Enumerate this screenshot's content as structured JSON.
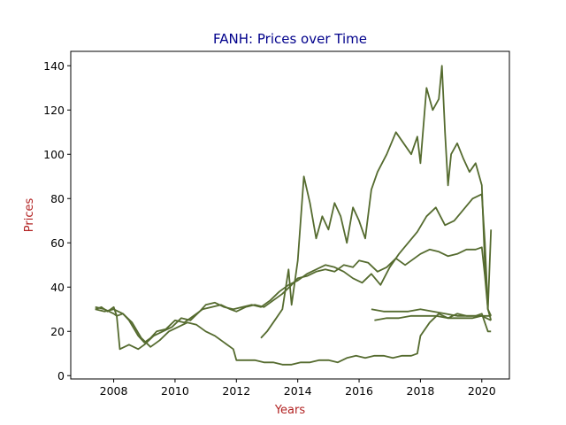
{
  "chart_data": {
    "type": "line",
    "title": "FANH: Prices over Time",
    "xlabel": "Years",
    "ylabel": "Prices",
    "xlim": [
      2006.6,
      2020.9
    ],
    "ylim": [
      -1.5,
      146.5
    ],
    "x_ticks": [
      "2008",
      "2010",
      "2012",
      "2014",
      "2016",
      "2018",
      "2020"
    ],
    "y_ticks": [
      "0",
      "20",
      "40",
      "60",
      "80",
      "100",
      "120",
      "140"
    ],
    "grid": false,
    "legend": "none",
    "colors": {
      "line": "#556b2f",
      "title": "#00008b",
      "axis_label": "#b22222",
      "axes": "#000000"
    },
    "series": [
      {
        "x": [
          2007.4,
          2007.6,
          2007.8,
          2008.0,
          2008.1,
          2008.3,
          2008.5,
          2008.8,
          2009.0,
          2009.2,
          2009.4,
          2009.7,
          2010.0,
          2010.3,
          2010.6,
          2010.9,
          2011.2,
          2011.5,
          2011.8,
          2012.0,
          2012.3,
          2012.6,
          2012.9,
          2013.2,
          2013.5,
          2013.8,
          2014.0,
          2014.3,
          2014.6,
          2014.9,
          2015.2,
          2015.5,
          2015.8,
          2016.0,
          2016.3,
          2016.6,
          2016.9,
          2017.2,
          2017.5,
          2017.8,
          2018.0,
          2018.3,
          2018.6,
          2018.9,
          2019.2,
          2019.5,
          2019.8,
          2020.0,
          2020.1,
          2020.2,
          2020.3
        ],
        "y": [
          30,
          31,
          29,
          31,
          27,
          28,
          25,
          18,
          15,
          17,
          20,
          21,
          25,
          24,
          27,
          30,
          31,
          32,
          30,
          29,
          31,
          32,
          31,
          34,
          37,
          41,
          44,
          45,
          47,
          48,
          47,
          50,
          49,
          52,
          51,
          47,
          49,
          53,
          50,
          53,
          55,
          57,
          56,
          54,
          55,
          57,
          57,
          58,
          45,
          30,
          27
        ]
      },
      {
        "x": [
          2007.4,
          2007.7,
          2008.0,
          2008.1,
          2008.2,
          2008.5,
          2008.8,
          2009.0,
          2009.3,
          2009.6,
          2009.9,
          2010.2,
          2010.5,
          2010.8,
          2011.0,
          2011.3,
          2011.6,
          2011.9,
          2012.2,
          2012.5,
          2012.8,
          2013.1,
          2013.4,
          2013.7,
          2014.0,
          2014.3,
          2014.6,
          2014.9,
          2015.2,
          2015.5,
          2015.8,
          2016.1,
          2016.4,
          2016.7,
          2017.0,
          2017.3,
          2017.6,
          2017.9,
          2018.2,
          2018.5,
          2018.8,
          2019.1,
          2019.4,
          2019.7,
          2020.0,
          2020.1,
          2020.2,
          2020.3
        ],
        "y": [
          31,
          30,
          28,
          27,
          12,
          14,
          12,
          14,
          18,
          20,
          22,
          26,
          25,
          29,
          32,
          33,
          31,
          30,
          31,
          32,
          31,
          34,
          38,
          41,
          43,
          46,
          48,
          50,
          49,
          47,
          44,
          42,
          46,
          41,
          49,
          55,
          60,
          65,
          72,
          76,
          68,
          70,
          75,
          80,
          82,
          60,
          30,
          25
        ]
      },
      {
        "x": [
          2007.4,
          2007.7,
          2008.0,
          2008.3,
          2008.6,
          2008.9,
          2009.2,
          2009.5,
          2009.8,
          2010.1,
          2010.4,
          2010.7,
          2011.0,
          2011.3,
          2011.6,
          2011.9,
          2012.0,
          2012.3,
          2012.6,
          2012.9,
          2013.2,
          2013.5,
          2013.8,
          2014.1,
          2014.4,
          2014.7,
          2015.0,
          2015.3,
          2015.6,
          2015.9,
          2016.2,
          2016.5,
          2016.8,
          2017.1,
          2017.4,
          2017.7,
          2017.9,
          2018.0,
          2018.3,
          2018.6,
          2018.9,
          2019.2,
          2019.5,
          2019.8,
          2020.0,
          2020.2,
          2020.3
        ],
        "y": [
          30,
          29,
          30,
          28,
          24,
          17,
          13,
          16,
          20,
          22,
          24,
          23,
          20,
          18,
          15,
          12,
          7,
          7,
          7,
          6,
          6,
          5,
          5,
          6,
          6,
          7,
          7,
          6,
          8,
          9,
          8,
          9,
          9,
          8,
          9,
          9,
          10,
          18,
          24,
          28,
          26,
          28,
          27,
          27,
          28,
          20,
          20
        ]
      },
      {
        "x": [
          2012.8,
          2013.0,
          2013.3,
          2013.5,
          2013.7,
          2013.8,
          2014.0,
          2014.2,
          2014.4,
          2014.6,
          2014.8,
          2015.0,
          2015.2,
          2015.4,
          2015.6,
          2015.8,
          2016.0,
          2016.2,
          2016.4,
          2016.6,
          2016.9,
          2017.2,
          2017.5,
          2017.7,
          2017.9,
          2018.0,
          2018.2,
          2018.4,
          2018.6,
          2018.7,
          2018.8,
          2018.9,
          2019.0,
          2019.2,
          2019.4,
          2019.6,
          2019.8,
          2020.0,
          2020.1,
          2020.2,
          2020.3
        ],
        "y": [
          17,
          20,
          26,
          30,
          48,
          32,
          52,
          90,
          78,
          62,
          72,
          66,
          78,
          72,
          60,
          76,
          70,
          62,
          84,
          92,
          100,
          110,
          104,
          100,
          108,
          96,
          130,
          120,
          125,
          140,
          110,
          86,
          100,
          105,
          98,
          92,
          96,
          86,
          50,
          30,
          66
        ]
      },
      {
        "x": [
          2016.4,
          2016.8,
          2017.2,
          2017.6,
          2018.0,
          2018.4,
          2018.8,
          2019.2,
          2019.6,
          2020.0,
          2020.3
        ],
        "y": [
          30,
          29,
          29,
          29,
          30,
          29,
          28,
          27,
          27,
          27,
          27
        ]
      },
      {
        "x": [
          2016.5,
          2016.9,
          2017.3,
          2017.7,
          2018.1,
          2018.5,
          2018.9,
          2019.3,
          2019.7,
          2020.0,
          2020.3
        ],
        "y": [
          25,
          26,
          26,
          27,
          27,
          27,
          26,
          26,
          26,
          27,
          25
        ]
      }
    ]
  }
}
